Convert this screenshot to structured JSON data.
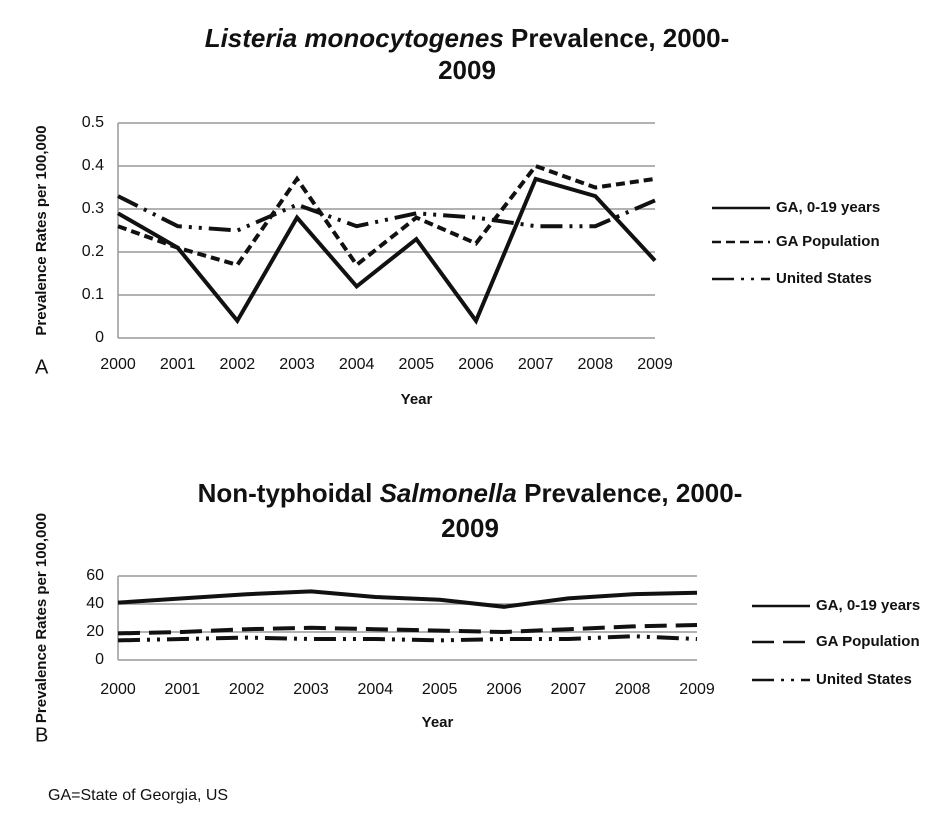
{
  "chart_data": [
    {
      "type": "line",
      "panel": "A",
      "title": [
        [
          {
            "text": "Listeria monocytogenes",
            "italic": true
          },
          {
            "text": " Prevalence, 2000-"
          }
        ],
        [
          {
            "text": "2009"
          }
        ]
      ],
      "x_label": "Year",
      "y_label": "Prevalence Rates per 100,000",
      "categories": [
        "2000",
        "2001",
        "2002",
        "2003",
        "2004",
        "2005",
        "2006",
        "2007",
        "2008",
        "2009"
      ],
      "series": [
        {
          "name": "GA, 0-19 years",
          "color": "#111111",
          "style": "solid",
          "values": [
            0.29,
            0.21,
            0.04,
            0.28,
            0.12,
            0.23,
            0.04,
            0.37,
            0.33,
            0.18
          ]
        },
        {
          "name": "GA Population",
          "color": "#111111",
          "style": "dashed",
          "values": [
            0.26,
            0.21,
            0.17,
            0.37,
            0.17,
            0.28,
            0.22,
            0.4,
            0.35,
            0.37
          ]
        },
        {
          "name": "United States",
          "color": "#111111",
          "style": "dash-dot-dot",
          "values": [
            0.33,
            0.26,
            0.25,
            0.31,
            0.26,
            0.29,
            0.28,
            0.26,
            0.26,
            0.32
          ]
        }
      ],
      "ylim": [
        0,
        0.5
      ],
      "yticks": [
        0,
        0.1,
        0.2,
        0.3,
        0.4,
        0.5
      ],
      "grid": true,
      "legend": "right"
    },
    {
      "type": "line",
      "panel": "B",
      "title": [
        [
          {
            "text": "Non-typhoidal "
          },
          {
            "text": "Salmonella",
            "italic": true
          },
          {
            "text": " Prevalence, 2000-"
          }
        ],
        [
          {
            "text": "2009"
          }
        ]
      ],
      "x_label": "Year",
      "y_label": "Prevalence Rates per 100,000",
      "categories": [
        "2000",
        "2001",
        "2002",
        "2003",
        "2004",
        "2005",
        "2006",
        "2007",
        "2008",
        "2009"
      ],
      "series": [
        {
          "name": "GA, 0-19 years",
          "color": "#111111",
          "style": "solid",
          "values": [
            41,
            44,
            47,
            49,
            45,
            43,
            38,
            44,
            47,
            48
          ]
        },
        {
          "name": "GA Population",
          "color": "#111111",
          "style": "long-dashed",
          "values": [
            19,
            20,
            22,
            23,
            22,
            21,
            20,
            22,
            24,
            25
          ]
        },
        {
          "name": "United States",
          "color": "#111111",
          "style": "dash-dot-dot",
          "values": [
            14,
            15,
            16,
            15,
            15,
            14,
            15,
            15,
            17,
            15
          ]
        }
      ],
      "ylim": [
        0,
        60
      ],
      "yticks": [
        0,
        20,
        40,
        60
      ],
      "grid": true,
      "legend": "right"
    }
  ],
  "footnote": "GA=State of Georgia, US"
}
